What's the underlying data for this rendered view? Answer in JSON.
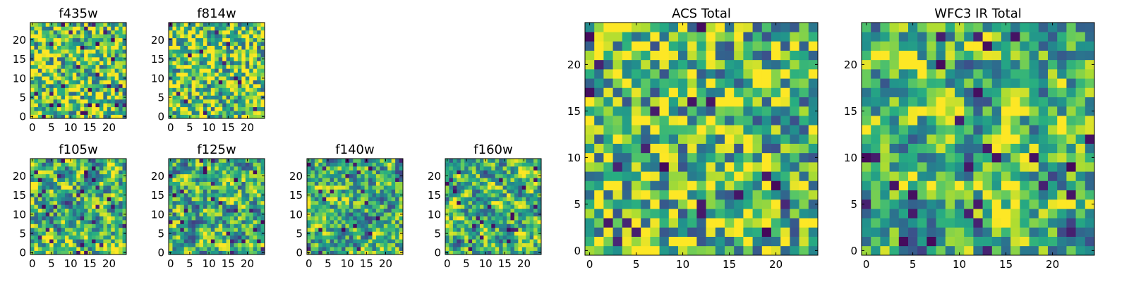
{
  "figure": {
    "background": "#ffffff",
    "colormap": "viridis"
  },
  "chart_data": [
    {
      "type": "heatmap",
      "id": "f435w",
      "title": "f435w",
      "grid_size": 25,
      "xlim": [
        -0.5,
        24.5
      ],
      "ylim": [
        -0.5,
        24.5
      ],
      "xticks": [
        0,
        5,
        10,
        15,
        20
      ],
      "yticks": [
        0,
        5,
        10,
        15,
        20
      ],
      "character": "fine-grained noise, mostly high values",
      "seed": 11,
      "smooth": 0,
      "bias": 0.55
    },
    {
      "type": "heatmap",
      "id": "f814w",
      "title": "f814w",
      "grid_size": 25,
      "xlim": [
        -0.5,
        24.5
      ],
      "ylim": [
        -0.5,
        24.5
      ],
      "xticks": [
        0,
        5,
        10,
        15,
        20
      ],
      "yticks": [
        0,
        5,
        10,
        15,
        20
      ],
      "character": "fine-grained noise, mostly high values",
      "seed": 23,
      "smooth": 0,
      "bias": 0.55
    },
    {
      "type": "heatmap",
      "id": "f105w",
      "title": "f105w",
      "grid_size": 25,
      "xlim": [
        -0.5,
        24.5
      ],
      "ylim": [
        -0.5,
        24.5
      ],
      "xticks": [
        0,
        5,
        10,
        15,
        20
      ],
      "yticks": [
        0,
        5,
        10,
        15,
        20
      ],
      "character": "correlated noise, mid values",
      "seed": 37,
      "smooth": 1,
      "bias": 0.45
    },
    {
      "type": "heatmap",
      "id": "f125w",
      "title": "f125w",
      "grid_size": 25,
      "xlim": [
        -0.5,
        24.5
      ],
      "ylim": [
        -0.5,
        24.5
      ],
      "xticks": [
        0,
        5,
        10,
        15,
        20
      ],
      "yticks": [
        0,
        5,
        10,
        15,
        20
      ],
      "character": "correlated noise, mid values",
      "seed": 41,
      "smooth": 1,
      "bias": 0.45
    },
    {
      "type": "heatmap",
      "id": "f140w",
      "title": "f140w",
      "grid_size": 25,
      "xlim": [
        -0.5,
        24.5
      ],
      "ylim": [
        -0.5,
        24.5
      ],
      "xticks": [
        0,
        5,
        10,
        15,
        20
      ],
      "yticks": [
        0,
        5,
        10,
        15,
        20
      ],
      "character": "correlated noise, mid values",
      "seed": 53,
      "smooth": 1,
      "bias": 0.45
    },
    {
      "type": "heatmap",
      "id": "f160w",
      "title": "f160w",
      "grid_size": 25,
      "xlim": [
        -0.5,
        24.5
      ],
      "ylim": [
        -0.5,
        24.5
      ],
      "xticks": [
        0,
        5,
        10,
        15,
        20
      ],
      "yticks": [
        0,
        5,
        10,
        15,
        20
      ],
      "character": "correlated noise, mid values",
      "seed": 67,
      "smooth": 1,
      "bias": 0.45
    },
    {
      "type": "heatmap",
      "id": "acs-total",
      "title": "ACS Total",
      "grid_size": 25,
      "xlim": [
        -0.5,
        24.5
      ],
      "ylim": [
        -0.5,
        24.5
      ],
      "xticks": [
        0,
        5,
        10,
        15,
        20
      ],
      "yticks": [
        0,
        5,
        10,
        15,
        20
      ],
      "character": "fine-grained noise, high values with scattered dark pixels",
      "seed": 79,
      "smooth": 0,
      "bias": 0.5
    },
    {
      "type": "heatmap",
      "id": "wfc3-ir-total",
      "title": "WFC3 IR Total",
      "grid_size": 25,
      "xlim": [
        -0.5,
        24.5
      ],
      "ylim": [
        -0.5,
        24.5
      ],
      "xticks": [
        0,
        5,
        10,
        15,
        20
      ],
      "yticks": [
        0,
        5,
        10,
        15,
        20
      ],
      "character": "smooth correlated noise, mid values, few dark blobs",
      "seed": 97,
      "smooth": 1,
      "bias": 0.45
    }
  ]
}
